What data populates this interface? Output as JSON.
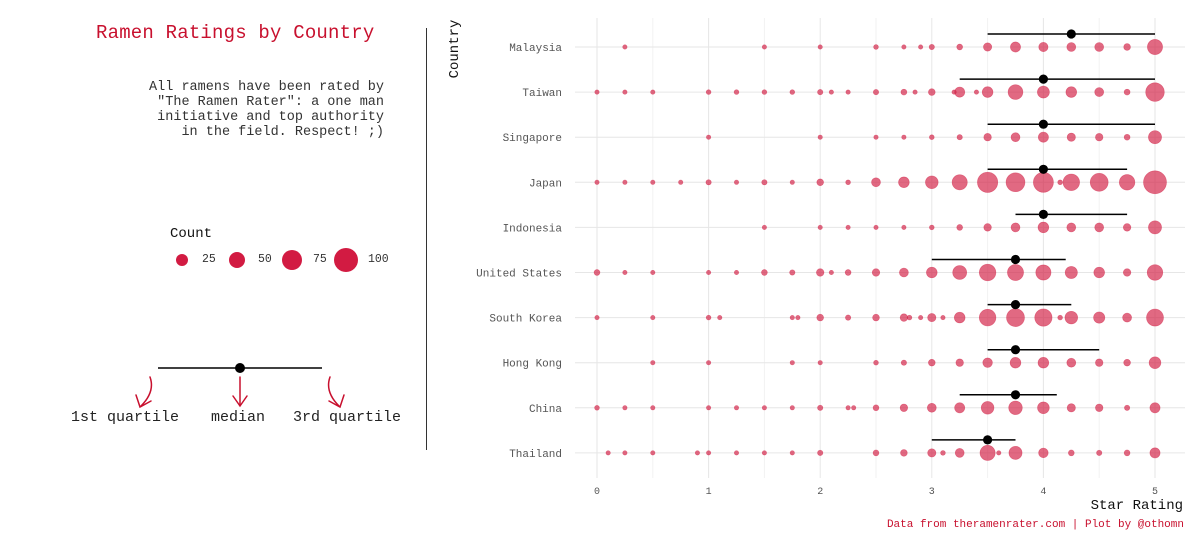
{
  "title": "Ramen Ratings by Country",
  "description": "All ramens have been rated by\n\"The Ramen Rater\": a one man\ninitiative and top authority\nin the field. Respect! ;)",
  "legend": {
    "title": "Count",
    "items": [
      {
        "label": "25",
        "count": 25
      },
      {
        "label": "50",
        "count": 50
      },
      {
        "label": "75",
        "count": 75
      },
      {
        "label": "100",
        "count": 100
      }
    ]
  },
  "key": {
    "first_quartile": "1st quartile",
    "median": "median",
    "third_quartile": "3rd quartile"
  },
  "caption": "Data from theramenrater.com | Plot by @othomn",
  "colors": {
    "point": "#d21b42",
    "accent": "#c8102e",
    "median": "#000000"
  },
  "chart_data": {
    "type": "scatter",
    "title": "Ramen Ratings by Country",
    "xlabel": "Star Rating",
    "ylabel": "Country",
    "xlim": [
      0,
      5
    ],
    "xticks": [
      0,
      1,
      2,
      3,
      4,
      5
    ],
    "grid": true,
    "size_legend": [
      25,
      50,
      75,
      100
    ],
    "countries": [
      {
        "name": "Malaysia",
        "q1": 3.5,
        "median": 4.25,
        "q3": 5.0,
        "points": [
          [
            0.25,
            1
          ],
          [
            1.5,
            1
          ],
          [
            2,
            3
          ],
          [
            2.5,
            4
          ],
          [
            2.75,
            2
          ],
          [
            2.9,
            2
          ],
          [
            3,
            5
          ],
          [
            3.25,
            6
          ],
          [
            3.5,
            12
          ],
          [
            3.75,
            18
          ],
          [
            4,
            15
          ],
          [
            4.25,
            14
          ],
          [
            4.5,
            14
          ],
          [
            4.75,
            8
          ],
          [
            5,
            40
          ]
        ]
      },
      {
        "name": "Taiwan",
        "q1": 3.25,
        "median": 4.0,
        "q3": 5.0,
        "points": [
          [
            0,
            2
          ],
          [
            0.25,
            1
          ],
          [
            0.5,
            1
          ],
          [
            1,
            4
          ],
          [
            1.25,
            4
          ],
          [
            1.5,
            4
          ],
          [
            1.75,
            4
          ],
          [
            2,
            5
          ],
          [
            2.1,
            2
          ],
          [
            2.25,
            3
          ],
          [
            2.5,
            5
          ],
          [
            2.75,
            6
          ],
          [
            2.85,
            2
          ],
          [
            3,
            8
          ],
          [
            3.2,
            2
          ],
          [
            3.25,
            18
          ],
          [
            3.4,
            1
          ],
          [
            3.5,
            20
          ],
          [
            3.75,
            38
          ],
          [
            4,
            25
          ],
          [
            4.25,
            20
          ],
          [
            4.5,
            14
          ],
          [
            4.75,
            6
          ],
          [
            5,
            60
          ]
        ]
      },
      {
        "name": "Singapore",
        "q1": 3.5,
        "median": 4.0,
        "q3": 5.0,
        "points": [
          [
            1,
            1
          ],
          [
            2,
            2
          ],
          [
            2.5,
            3
          ],
          [
            2.75,
            3
          ],
          [
            3,
            4
          ],
          [
            3.25,
            5
          ],
          [
            3.5,
            10
          ],
          [
            3.75,
            14
          ],
          [
            4,
            18
          ],
          [
            4.25,
            12
          ],
          [
            4.5,
            10
          ],
          [
            4.75,
            6
          ],
          [
            5,
            30
          ]
        ]
      },
      {
        "name": "Japan",
        "q1": 3.5,
        "median": 4.0,
        "q3": 4.75,
        "points": [
          [
            0,
            3
          ],
          [
            0.25,
            3
          ],
          [
            0.5,
            2
          ],
          [
            0.75,
            1
          ],
          [
            1,
            5
          ],
          [
            1.25,
            2
          ],
          [
            1.5,
            5
          ],
          [
            1.75,
            2
          ],
          [
            2,
            8
          ],
          [
            2.25,
            4
          ],
          [
            2.5,
            14
          ],
          [
            2.75,
            20
          ],
          [
            3,
            28
          ],
          [
            3.25,
            40
          ],
          [
            3.5,
            72
          ],
          [
            3.75,
            62
          ],
          [
            4,
            70
          ],
          [
            4.15,
            4
          ],
          [
            4.25,
            48
          ],
          [
            4.5,
            56
          ],
          [
            4.75,
            42
          ],
          [
            5,
            92
          ]
        ]
      },
      {
        "name": "Indonesia",
        "q1": 3.75,
        "median": 4.0,
        "q3": 4.75,
        "points": [
          [
            1.5,
            2
          ],
          [
            2,
            1
          ],
          [
            2.25,
            1
          ],
          [
            2.5,
            1
          ],
          [
            2.75,
            2
          ],
          [
            3,
            4
          ],
          [
            3.25,
            6
          ],
          [
            3.5,
            10
          ],
          [
            3.75,
            14
          ],
          [
            4,
            20
          ],
          [
            4.25,
            14
          ],
          [
            4.5,
            14
          ],
          [
            4.75,
            10
          ],
          [
            5,
            30
          ]
        ]
      },
      {
        "name": "United States",
        "q1": 3.0,
        "median": 3.75,
        "q3": 4.2,
        "points": [
          [
            0,
            6
          ],
          [
            0.25,
            3
          ],
          [
            0.5,
            2
          ],
          [
            1,
            3
          ],
          [
            1.25,
            2
          ],
          [
            1.5,
            6
          ],
          [
            1.75,
            5
          ],
          [
            2,
            10
          ],
          [
            2.1,
            2
          ],
          [
            2.25,
            6
          ],
          [
            2.5,
            10
          ],
          [
            2.75,
            14
          ],
          [
            3,
            20
          ],
          [
            3.25,
            34
          ],
          [
            3.5,
            48
          ],
          [
            3.75,
            45
          ],
          [
            4,
            40
          ],
          [
            4.25,
            26
          ],
          [
            4.5,
            20
          ],
          [
            4.75,
            10
          ],
          [
            5,
            42
          ]
        ]
      },
      {
        "name": "South Korea",
        "q1": 3.5,
        "median": 3.75,
        "q3": 4.25,
        "points": [
          [
            0,
            3
          ],
          [
            0.5,
            2
          ],
          [
            1,
            4
          ],
          [
            1.1,
            3
          ],
          [
            1.75,
            2
          ],
          [
            1.8,
            2
          ],
          [
            2,
            8
          ],
          [
            2.25,
            5
          ],
          [
            2.5,
            8
          ],
          [
            2.75,
            10
          ],
          [
            2.8,
            4
          ],
          [
            2.9,
            3
          ],
          [
            3,
            12
          ],
          [
            3.1,
            3
          ],
          [
            3.25,
            20
          ],
          [
            3.5,
            48
          ],
          [
            3.75,
            56
          ],
          [
            4,
            52
          ],
          [
            4.15,
            4
          ],
          [
            4.25,
            28
          ],
          [
            4.5,
            22
          ],
          [
            4.75,
            14
          ],
          [
            5,
            50
          ]
        ]
      },
      {
        "name": "Hong Kong",
        "q1": 3.5,
        "median": 3.75,
        "q3": 4.5,
        "points": [
          [
            0.5,
            1
          ],
          [
            1,
            1
          ],
          [
            1.75,
            3
          ],
          [
            2,
            3
          ],
          [
            2.5,
            4
          ],
          [
            2.75,
            5
          ],
          [
            3,
            8
          ],
          [
            3.25,
            10
          ],
          [
            3.5,
            16
          ],
          [
            3.75,
            20
          ],
          [
            4,
            20
          ],
          [
            4.25,
            14
          ],
          [
            4.5,
            10
          ],
          [
            4.75,
            8
          ],
          [
            5,
            24
          ]
        ]
      },
      {
        "name": "China",
        "q1": 3.25,
        "median": 3.75,
        "q3": 4.12,
        "points": [
          [
            0,
            4
          ],
          [
            0.25,
            3
          ],
          [
            0.5,
            3
          ],
          [
            1,
            3
          ],
          [
            1.25,
            2
          ],
          [
            1.5,
            3
          ],
          [
            1.75,
            3
          ],
          [
            2,
            5
          ],
          [
            2.25,
            3
          ],
          [
            2.3,
            3
          ],
          [
            2.5,
            6
          ],
          [
            2.75,
            10
          ],
          [
            3,
            14
          ],
          [
            3.25,
            18
          ],
          [
            3.5,
            28
          ],
          [
            3.75,
            32
          ],
          [
            4,
            24
          ],
          [
            4.25,
            12
          ],
          [
            4.5,
            10
          ],
          [
            4.75,
            5
          ],
          [
            5,
            18
          ]
        ]
      },
      {
        "name": "Thailand",
        "q1": 3.0,
        "median": 3.5,
        "q3": 3.75,
        "points": [
          [
            0.1,
            1
          ],
          [
            0.25,
            1
          ],
          [
            0.5,
            2
          ],
          [
            0.9,
            1
          ],
          [
            1,
            2
          ],
          [
            1.25,
            2
          ],
          [
            1.5,
            2
          ],
          [
            1.75,
            3
          ],
          [
            2,
            5
          ],
          [
            2.5,
            6
          ],
          [
            2.75,
            8
          ],
          [
            3,
            12
          ],
          [
            3.1,
            4
          ],
          [
            3.25,
            14
          ],
          [
            3.5,
            40
          ],
          [
            3.6,
            3
          ],
          [
            3.75,
            30
          ],
          [
            4,
            16
          ],
          [
            4.25,
            6
          ],
          [
            4.5,
            5
          ],
          [
            4.75,
            6
          ],
          [
            5,
            18
          ]
        ]
      }
    ]
  }
}
